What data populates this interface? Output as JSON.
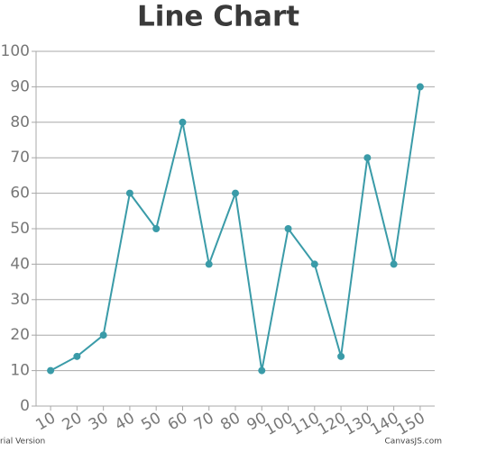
{
  "chart_data": {
    "type": "line",
    "title": "Line Chart",
    "x": [
      10,
      20,
      30,
      40,
      50,
      60,
      70,
      80,
      90,
      100,
      110,
      120,
      130,
      140,
      150
    ],
    "values": [
      10,
      14,
      20,
      60,
      50,
      80,
      40,
      60,
      10,
      50,
      40,
      14,
      70,
      40,
      90
    ],
    "color": "#3a9ba8",
    "xlim": [
      4.5,
      155.5
    ],
    "xticks": [
      10,
      20,
      30,
      40,
      50,
      60,
      70,
      80,
      90,
      100,
      110,
      120,
      130,
      140,
      150
    ],
    "ylim": [
      0,
      100
    ],
    "yticks": [
      0,
      10,
      20,
      30,
      40,
      50,
      60,
      70,
      80,
      90,
      100
    ],
    "grid": true
  },
  "footer": {
    "left": "rial Version",
    "right": "CanvasJS.com"
  }
}
